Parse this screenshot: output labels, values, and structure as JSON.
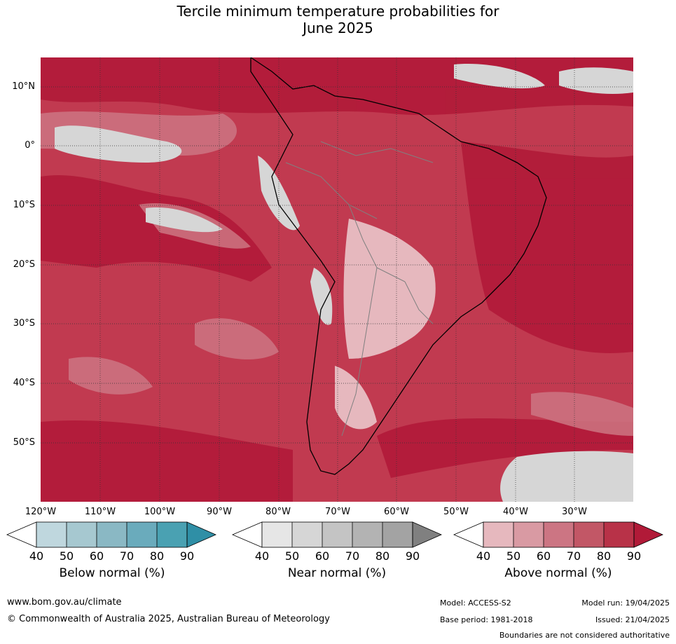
{
  "title_line1": "Tercile minimum temperature probabilities for",
  "title_line2": "June 2025",
  "map": {
    "lat_labels": [
      "10°N",
      "0°",
      "10°S",
      "20°S",
      "30°S",
      "40°S",
      "50°S"
    ],
    "lon_labels": [
      "120°W",
      "110°W",
      "100°W",
      "90°W",
      "80°W",
      "70°W",
      "60°W",
      "50°W",
      "40°W",
      "30°W"
    ],
    "ocean_color": "#c13a50",
    "land_color": "#b51f3c"
  },
  "legends": [
    {
      "title": "Below normal (%)",
      "ticks": [
        "40",
        "50",
        "60",
        "70",
        "80",
        "90"
      ],
      "colors": [
        "#ffffff",
        "#bfd7de",
        "#a6c8d0",
        "#8ab8c4",
        "#6aabbc",
        "#4aa1b2",
        "#2f8fa6"
      ]
    },
    {
      "title": "Near normal (%)",
      "ticks": [
        "40",
        "50",
        "60",
        "70",
        "80",
        "90"
      ],
      "colors": [
        "#ffffff",
        "#e6e6e6",
        "#d6d6d6",
        "#c4c4c4",
        "#b3b3b3",
        "#a3a3a3",
        "#808080"
      ]
    },
    {
      "title": "Above normal (%)",
      "ticks": [
        "40",
        "50",
        "60",
        "70",
        "80",
        "90"
      ],
      "colors": [
        "#ffffff",
        "#e6b8be",
        "#d99aa3",
        "#cc7583",
        "#c25766",
        "#b83248",
        "#b11a38"
      ]
    }
  ],
  "footer": {
    "url": "www.bom.gov.au/climate",
    "copyright": "© Commonwealth of Australia 2025, Australian Bureau of Meteorology",
    "model": "Model: ACCESS-S2",
    "base_period": "Base period: 1981-2018",
    "model_run": "Model run: 19/04/2025",
    "issued": "Issued: 21/04/2025",
    "disclaimer": "Boundaries are not considered authoritative"
  }
}
